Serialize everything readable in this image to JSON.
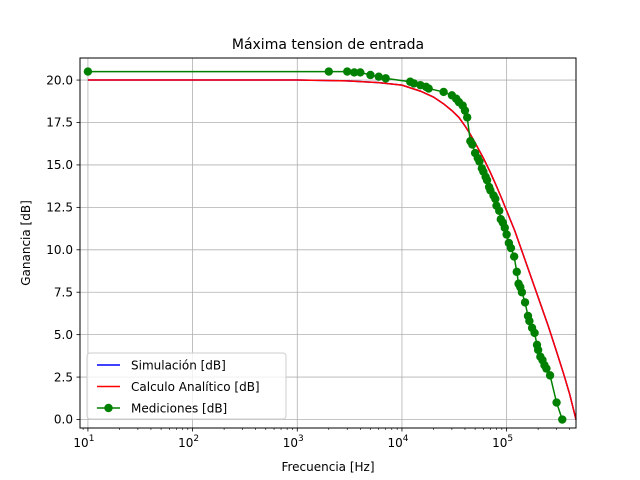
{
  "chart_data": {
    "type": "line",
    "title": "Máxima tension de entrada",
    "xlabel": "Frecuencia [Hz]",
    "ylabel": "Ganancia [dB]",
    "xscale": "log",
    "xlim": [
      8.4,
      460000
    ],
    "ylim": [
      -0.5,
      21.3
    ],
    "grid": true,
    "legend_position": "lower-left",
    "yticks": [
      "0.0",
      "2.5",
      "5.0",
      "7.5",
      "10.0",
      "12.5",
      "15.0",
      "17.5",
      "20.0"
    ],
    "xticks": [
      {
        "base": "10",
        "exp": "1",
        "value": 10
      },
      {
        "base": "10",
        "exp": "2",
        "value": 100
      },
      {
        "base": "10",
        "exp": "3",
        "value": 1000
      },
      {
        "base": "10",
        "exp": "4",
        "value": 10000
      },
      {
        "base": "10",
        "exp": "5",
        "value": 100000
      }
    ],
    "series": [
      {
        "name": "Simulación [dB]",
        "color": "#0000ff",
        "marker": false,
        "x": [
          10,
          100,
          1000,
          3000,
          6000,
          10000,
          15000,
          20000,
          25000,
          30000,
          35000,
          40000,
          45000,
          50000,
          60000,
          70000,
          80000,
          90000,
          100000,
          120000,
          150000,
          200000,
          250000,
          300000,
          350000,
          400000,
          460000
        ],
        "y": [
          20.0,
          20.0,
          20.0,
          19.95,
          19.85,
          19.7,
          19.35,
          19.0,
          18.6,
          18.2,
          17.8,
          17.3,
          16.8,
          16.3,
          15.4,
          14.55,
          13.75,
          13.0,
          12.3,
          11.1,
          9.4,
          7.2,
          5.5,
          4.0,
          2.7,
          1.5,
          0.0
        ]
      },
      {
        "name": "Calculo Analítico [dB]",
        "color": "#ff0000",
        "marker": false,
        "x": [
          10,
          100,
          1000,
          3000,
          6000,
          10000,
          15000,
          20000,
          25000,
          30000,
          35000,
          40000,
          45000,
          50000,
          60000,
          70000,
          80000,
          90000,
          100000,
          120000,
          150000,
          200000,
          250000,
          300000,
          350000,
          400000,
          460000
        ],
        "y": [
          20.0,
          20.0,
          20.0,
          19.95,
          19.85,
          19.7,
          19.35,
          19.0,
          18.6,
          18.2,
          17.8,
          17.3,
          16.8,
          16.3,
          15.4,
          14.55,
          13.75,
          13.0,
          12.3,
          11.1,
          9.4,
          7.2,
          5.5,
          4.0,
          2.7,
          1.5,
          0.0
        ]
      },
      {
        "name": "Mediciones [dB]",
        "color": "#008000",
        "marker": true,
        "x": [
          10,
          2000,
          3000,
          3500,
          4000,
          5000,
          6000,
          7000,
          12000,
          13000,
          15000,
          17000,
          18000,
          25000,
          30000,
          33000,
          35000,
          38000,
          40000,
          42000,
          45000,
          47000,
          50000,
          53000,
          55000,
          58000,
          60000,
          63000,
          65000,
          68000,
          70000,
          75000,
          78000,
          80000,
          85000,
          88000,
          92000,
          96000,
          100000,
          105000,
          110000,
          118000,
          125000,
          130000,
          135000,
          140000,
          150000,
          160000,
          165000,
          175000,
          185000,
          195000,
          200000,
          210000,
          220000,
          230000,
          240000,
          260000,
          300000,
          340000
        ],
        "y": [
          20.5,
          20.5,
          20.5,
          20.45,
          20.45,
          20.3,
          20.2,
          20.1,
          19.9,
          19.8,
          19.7,
          19.6,
          19.5,
          19.3,
          19.1,
          18.9,
          18.7,
          18.5,
          18.2,
          17.8,
          16.4,
          16.2,
          15.7,
          15.4,
          15.2,
          14.8,
          14.6,
          14.3,
          14.1,
          13.7,
          13.5,
          13.2,
          13.0,
          12.6,
          12.3,
          11.8,
          11.6,
          11.3,
          10.9,
          10.4,
          10.1,
          9.6,
          8.7,
          8.0,
          7.8,
          7.5,
          6.9,
          6.1,
          5.8,
          5.4,
          5.1,
          4.4,
          4.1,
          3.7,
          3.5,
          3.2,
          3.0,
          2.6,
          1.0,
          0.0
        ]
      }
    ]
  }
}
